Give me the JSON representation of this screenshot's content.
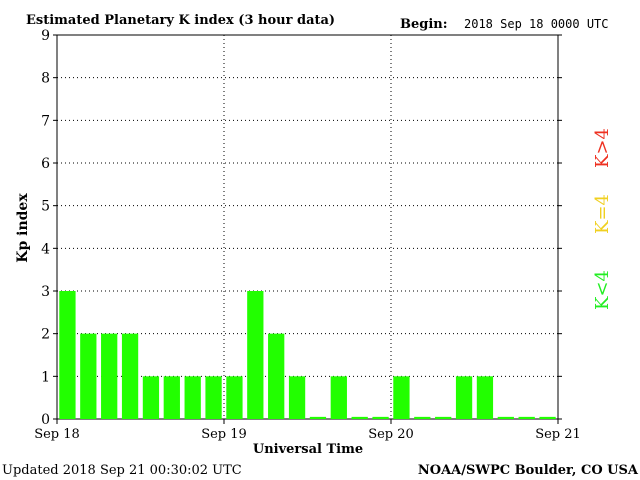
{
  "chart_data": {
    "type": "bar",
    "title": "Estimated Planetary K index (3 hour data)",
    "begin_label": "Begin:",
    "begin_value": "2018 Sep 18 0000 UTC",
    "xlabel": "Universal Time",
    "ylabel": "Kp index",
    "ylim": [
      0,
      9
    ],
    "yticks": [
      "0",
      "1",
      "2",
      "3",
      "4",
      "5",
      "6",
      "7",
      "8",
      "9"
    ],
    "xticks": [
      "Sep 18",
      "Sep 19",
      "Sep 20",
      "Sep 21"
    ],
    "grid": true,
    "values": [
      3,
      2,
      2,
      2,
      1,
      1,
      1,
      1,
      1,
      3,
      2,
      1,
      0.05,
      1,
      0.05,
      0.05,
      1,
      0.05,
      0.05,
      1,
      1,
      0.05,
      0.05,
      0.05
    ],
    "legend": [
      {
        "label": "K<4",
        "color": "#22ee22"
      },
      {
        "label": "K=4",
        "color": "#f0d020"
      },
      {
        "label": "K>4",
        "color": "#ee3020"
      }
    ],
    "bar_color": "#22ff00"
  },
  "footer": {
    "updated": "Updated 2018 Sep 21 00:30:02 UTC",
    "source": "NOAA/SWPC Boulder, CO USA"
  }
}
